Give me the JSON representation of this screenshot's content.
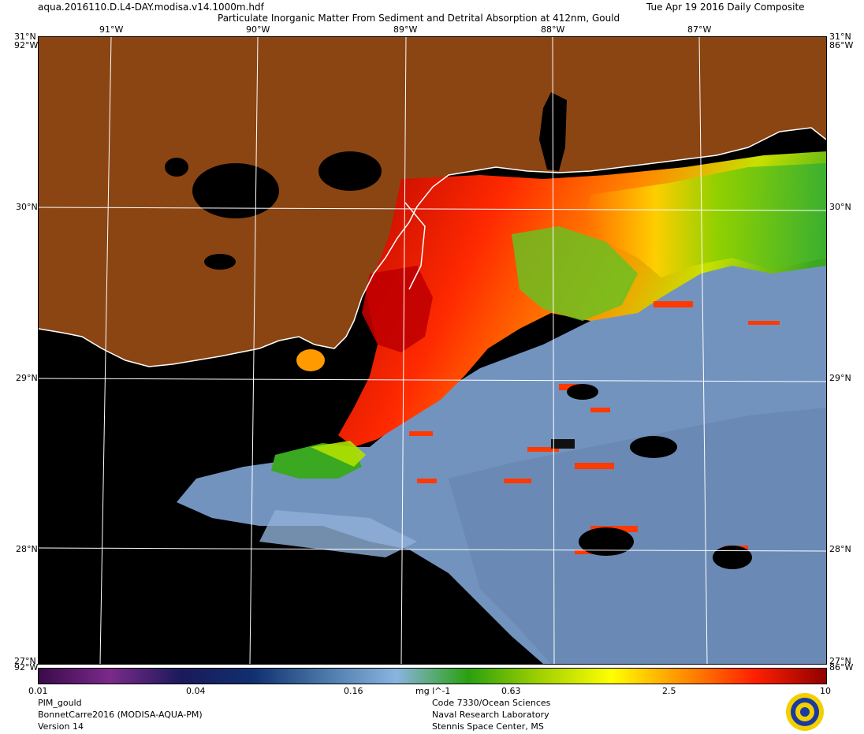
{
  "header": {
    "filename": "aqua.2016110.D.L4-DAY.modisa.v14.1000m.hdf",
    "title": "Particulate Inorganic Matter From Sediment and Detrital Absorption at 412nm, Gould",
    "date": "Tue Apr 19 2016 Daily Composite"
  },
  "map": {
    "top_lon_labels": [
      "91°W",
      "90°W",
      "89°W",
      "88°W",
      "87°W"
    ],
    "lat_labels": [
      "30°N",
      "29°N",
      "28°N"
    ],
    "corner_tl": "31°N",
    "corner_tl_lon": "92°W",
    "corner_tr": "31°N",
    "corner_tr_lon": "86°W",
    "corner_bl": "27°N",
    "corner_bl_lon": "92°W",
    "corner_br": "27°N",
    "corner_br_lon": "86°W",
    "colors": {
      "land": "#8b4513",
      "nodata": "#000000",
      "clear_water": "#6f8fba",
      "grid": "#ffffff"
    }
  },
  "colorbar": {
    "tick_labels": [
      "0.01",
      "0.04",
      "0.16",
      "0.63",
      "2.5",
      "10"
    ],
    "unit": "mg l^-1",
    "stops": [
      "#3a0a4a",
      "#7a2a8a",
      "#1a1a5a",
      "#103070",
      "#4a78a8",
      "#8ab4e0",
      "#2aa010",
      "#a0d000",
      "#ffff00",
      "#ff9000",
      "#ff2000",
      "#900000"
    ]
  },
  "footer": {
    "left": [
      "PIM_gould",
      "BonnetCarre2016 (MODISA-AQUA-PM)",
      "Version 14"
    ],
    "center": [
      "Code 7330/Ocean Sciences",
      "Naval Research Laboratory",
      "Stennis Space Center, MS"
    ],
    "logo_icon": "nrl-seal-icon"
  }
}
